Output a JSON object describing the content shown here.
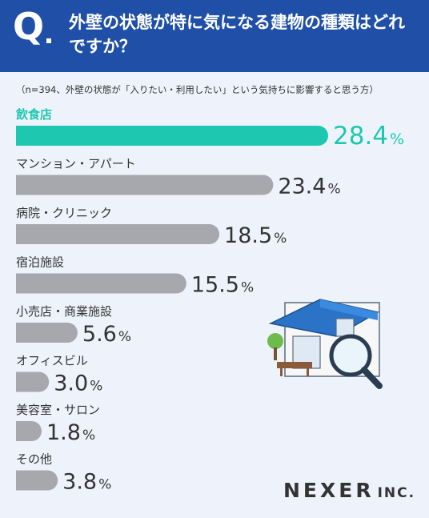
{
  "header": {
    "q_mark": "Q",
    "question": "外壁の状態が特に気になる建物の種類はどれですか？"
  },
  "note": "（n=394、外壁の状態が「入りたい・利用したい」という気持ちに影響すると思う方）",
  "logo": {
    "name": "NEXER",
    "suffix": "INC."
  },
  "colors": {
    "header": "#1f4fa7",
    "highlight": "#1ec8b0",
    "bar": "#a6a8ad",
    "text": "#333333"
  },
  "chart_data": {
    "type": "bar",
    "orientation": "horizontal",
    "unit": "%",
    "categories": [
      "飲食店",
      "マンション・アパート",
      "病院・クリニック",
      "宿泊施設",
      "小売店・商業施設",
      "オフィスビル",
      "美容室・サロン",
      "その他"
    ],
    "values": [
      28.4,
      23.4,
      18.5,
      15.5,
      5.6,
      3.0,
      1.8,
      3.8
    ],
    "value_labels": [
      "28.4",
      "23.4",
      "18.5",
      "15.5",
      "5.6",
      "3.0",
      "1.8",
      "3.8"
    ],
    "highlight_index": 0
  }
}
